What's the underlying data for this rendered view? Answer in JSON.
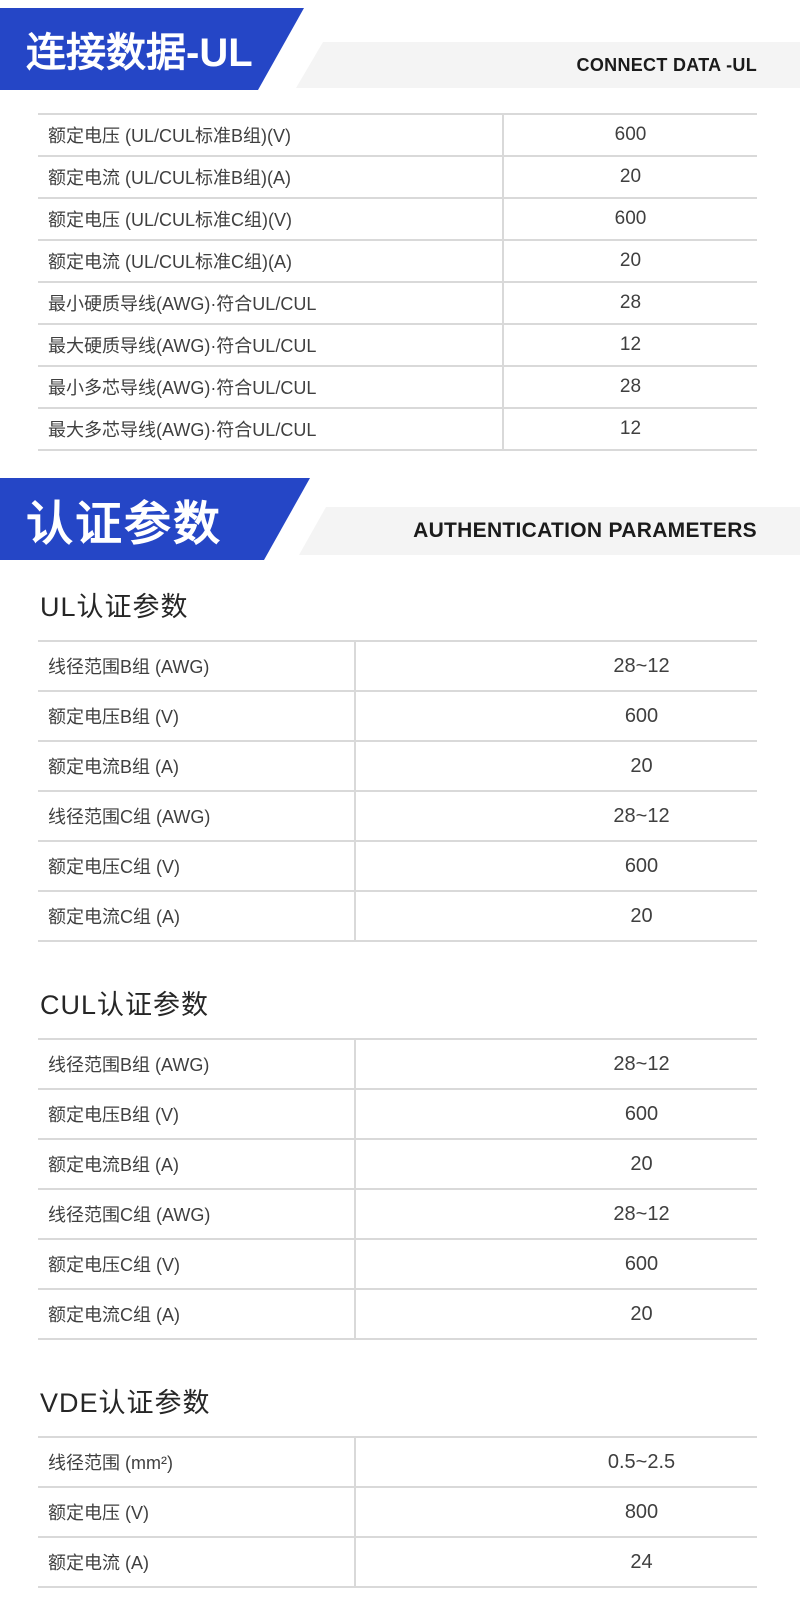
{
  "colors": {
    "accent_blue": "#2546c6",
    "bar_gray": "#f4f4f4",
    "border_gray": "#d9d9d9"
  },
  "banner_connect": {
    "title_cn": "连接数据-UL",
    "title_en": "CONNECT DATA -UL"
  },
  "banner_auth": {
    "title_cn": "认证参数",
    "title_en": "AUTHENTICATION PARAMETERS"
  },
  "connect_table": {
    "rows": [
      {
        "label": "额定电压 (UL/CUL标准B组)(V)",
        "value": "600"
      },
      {
        "label": "额定电流 (UL/CUL标准B组)(A)",
        "value": "20"
      },
      {
        "label": "额定电压 (UL/CUL标准C组)(V)",
        "value": "600"
      },
      {
        "label": "额定电流 (UL/CUL标准C组)(A)",
        "value": "20"
      },
      {
        "label": "最小硬质导线(AWG)·符合UL/CUL",
        "value": "28"
      },
      {
        "label": "最大硬质导线(AWG)·符合UL/CUL",
        "value": "12"
      },
      {
        "label": "最小多芯导线(AWG)·符合UL/CUL",
        "value": "28"
      },
      {
        "label": "最大多芯导线(AWG)·符合UL/CUL",
        "value": "12"
      }
    ]
  },
  "sections": [
    {
      "heading": "UL认证参数",
      "rows": [
        {
          "label": "线径范围B组 (AWG)",
          "value": "28~12"
        },
        {
          "label": "额定电压B组 (V)",
          "value": "600"
        },
        {
          "label": "额定电流B组 (A)",
          "value": "20"
        },
        {
          "label": "线径范围C组 (AWG)",
          "value": "28~12"
        },
        {
          "label": "额定电压C组 (V)",
          "value": "600"
        },
        {
          "label": "额定电流C组 (A)",
          "value": "20"
        }
      ]
    },
    {
      "heading": "CUL认证参数",
      "rows": [
        {
          "label": "线径范围B组 (AWG)",
          "value": "28~12"
        },
        {
          "label": "额定电压B组 (V)",
          "value": "600"
        },
        {
          "label": "额定电流B组 (A)",
          "value": "20"
        },
        {
          "label": "线径范围C组 (AWG)",
          "value": "28~12"
        },
        {
          "label": "额定电压C组 (V)",
          "value": "600"
        },
        {
          "label": "额定电流C组 (A)",
          "value": "20"
        }
      ]
    },
    {
      "heading": "VDE认证参数",
      "rows": [
        {
          "label": "线径范围 (mm²)",
          "value": "0.5~2.5"
        },
        {
          "label": "额定电压 (V)",
          "value": "800"
        },
        {
          "label": "额定电流 (A)",
          "value": "24"
        }
      ]
    }
  ]
}
